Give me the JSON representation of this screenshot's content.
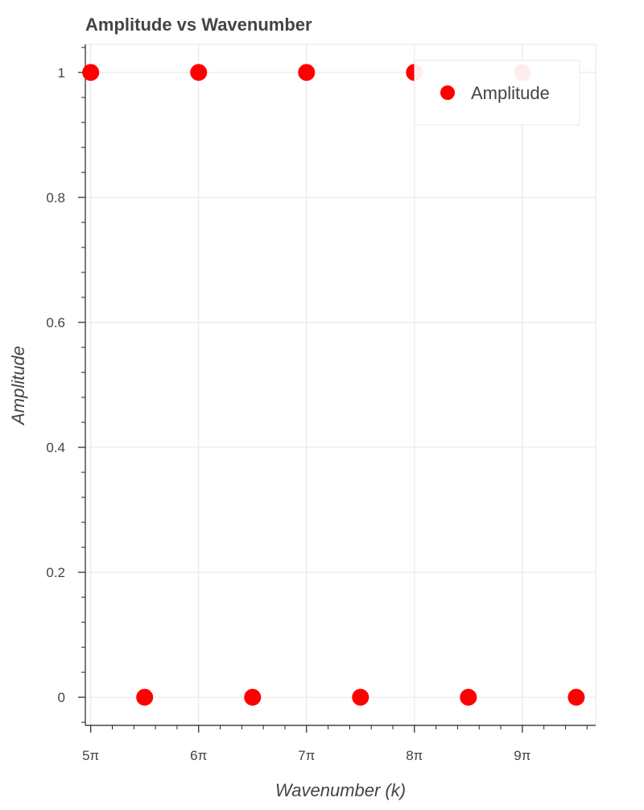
{
  "chart_data": {
    "type": "scatter",
    "title": "Amplitude vs Wavenumber",
    "xlabel": "Wavenumber (k)",
    "ylabel": "Amplitude",
    "x_unit": "π",
    "xlim": [
      4.95,
      9.68
    ],
    "ylim": [
      -0.045,
      1.045
    ],
    "x_ticks": [
      {
        "value": 5,
        "label": "5π"
      },
      {
        "value": 6,
        "label": "6π"
      },
      {
        "value": 7,
        "label": "7π"
      },
      {
        "value": 8,
        "label": "8π"
      },
      {
        "value": 9,
        "label": "9π"
      }
    ],
    "y_ticks": [
      {
        "value": 0,
        "label": "0"
      },
      {
        "value": 0.2,
        "label": "0.2"
      },
      {
        "value": 0.4,
        "label": "0.4"
      },
      {
        "value": 0.6,
        "label": "0.6"
      },
      {
        "value": 0.8,
        "label": "0.8"
      },
      {
        "value": 1,
        "label": "1"
      }
    ],
    "grid": true,
    "legend_position": "top-right",
    "series": [
      {
        "name": "Amplitude",
        "color": "#ff0000",
        "marker": "circle",
        "points": [
          {
            "x": 5,
            "y": 1
          },
          {
            "x": 5.5,
            "y": 0
          },
          {
            "x": 6,
            "y": 1
          },
          {
            "x": 6.5,
            "y": 0
          },
          {
            "x": 7,
            "y": 1
          },
          {
            "x": 7.5,
            "y": 0
          },
          {
            "x": 8,
            "y": 1
          },
          {
            "x": 8.5,
            "y": 0
          },
          {
            "x": 9,
            "y": 1
          },
          {
            "x": 9.5,
            "y": 0
          }
        ]
      }
    ]
  }
}
